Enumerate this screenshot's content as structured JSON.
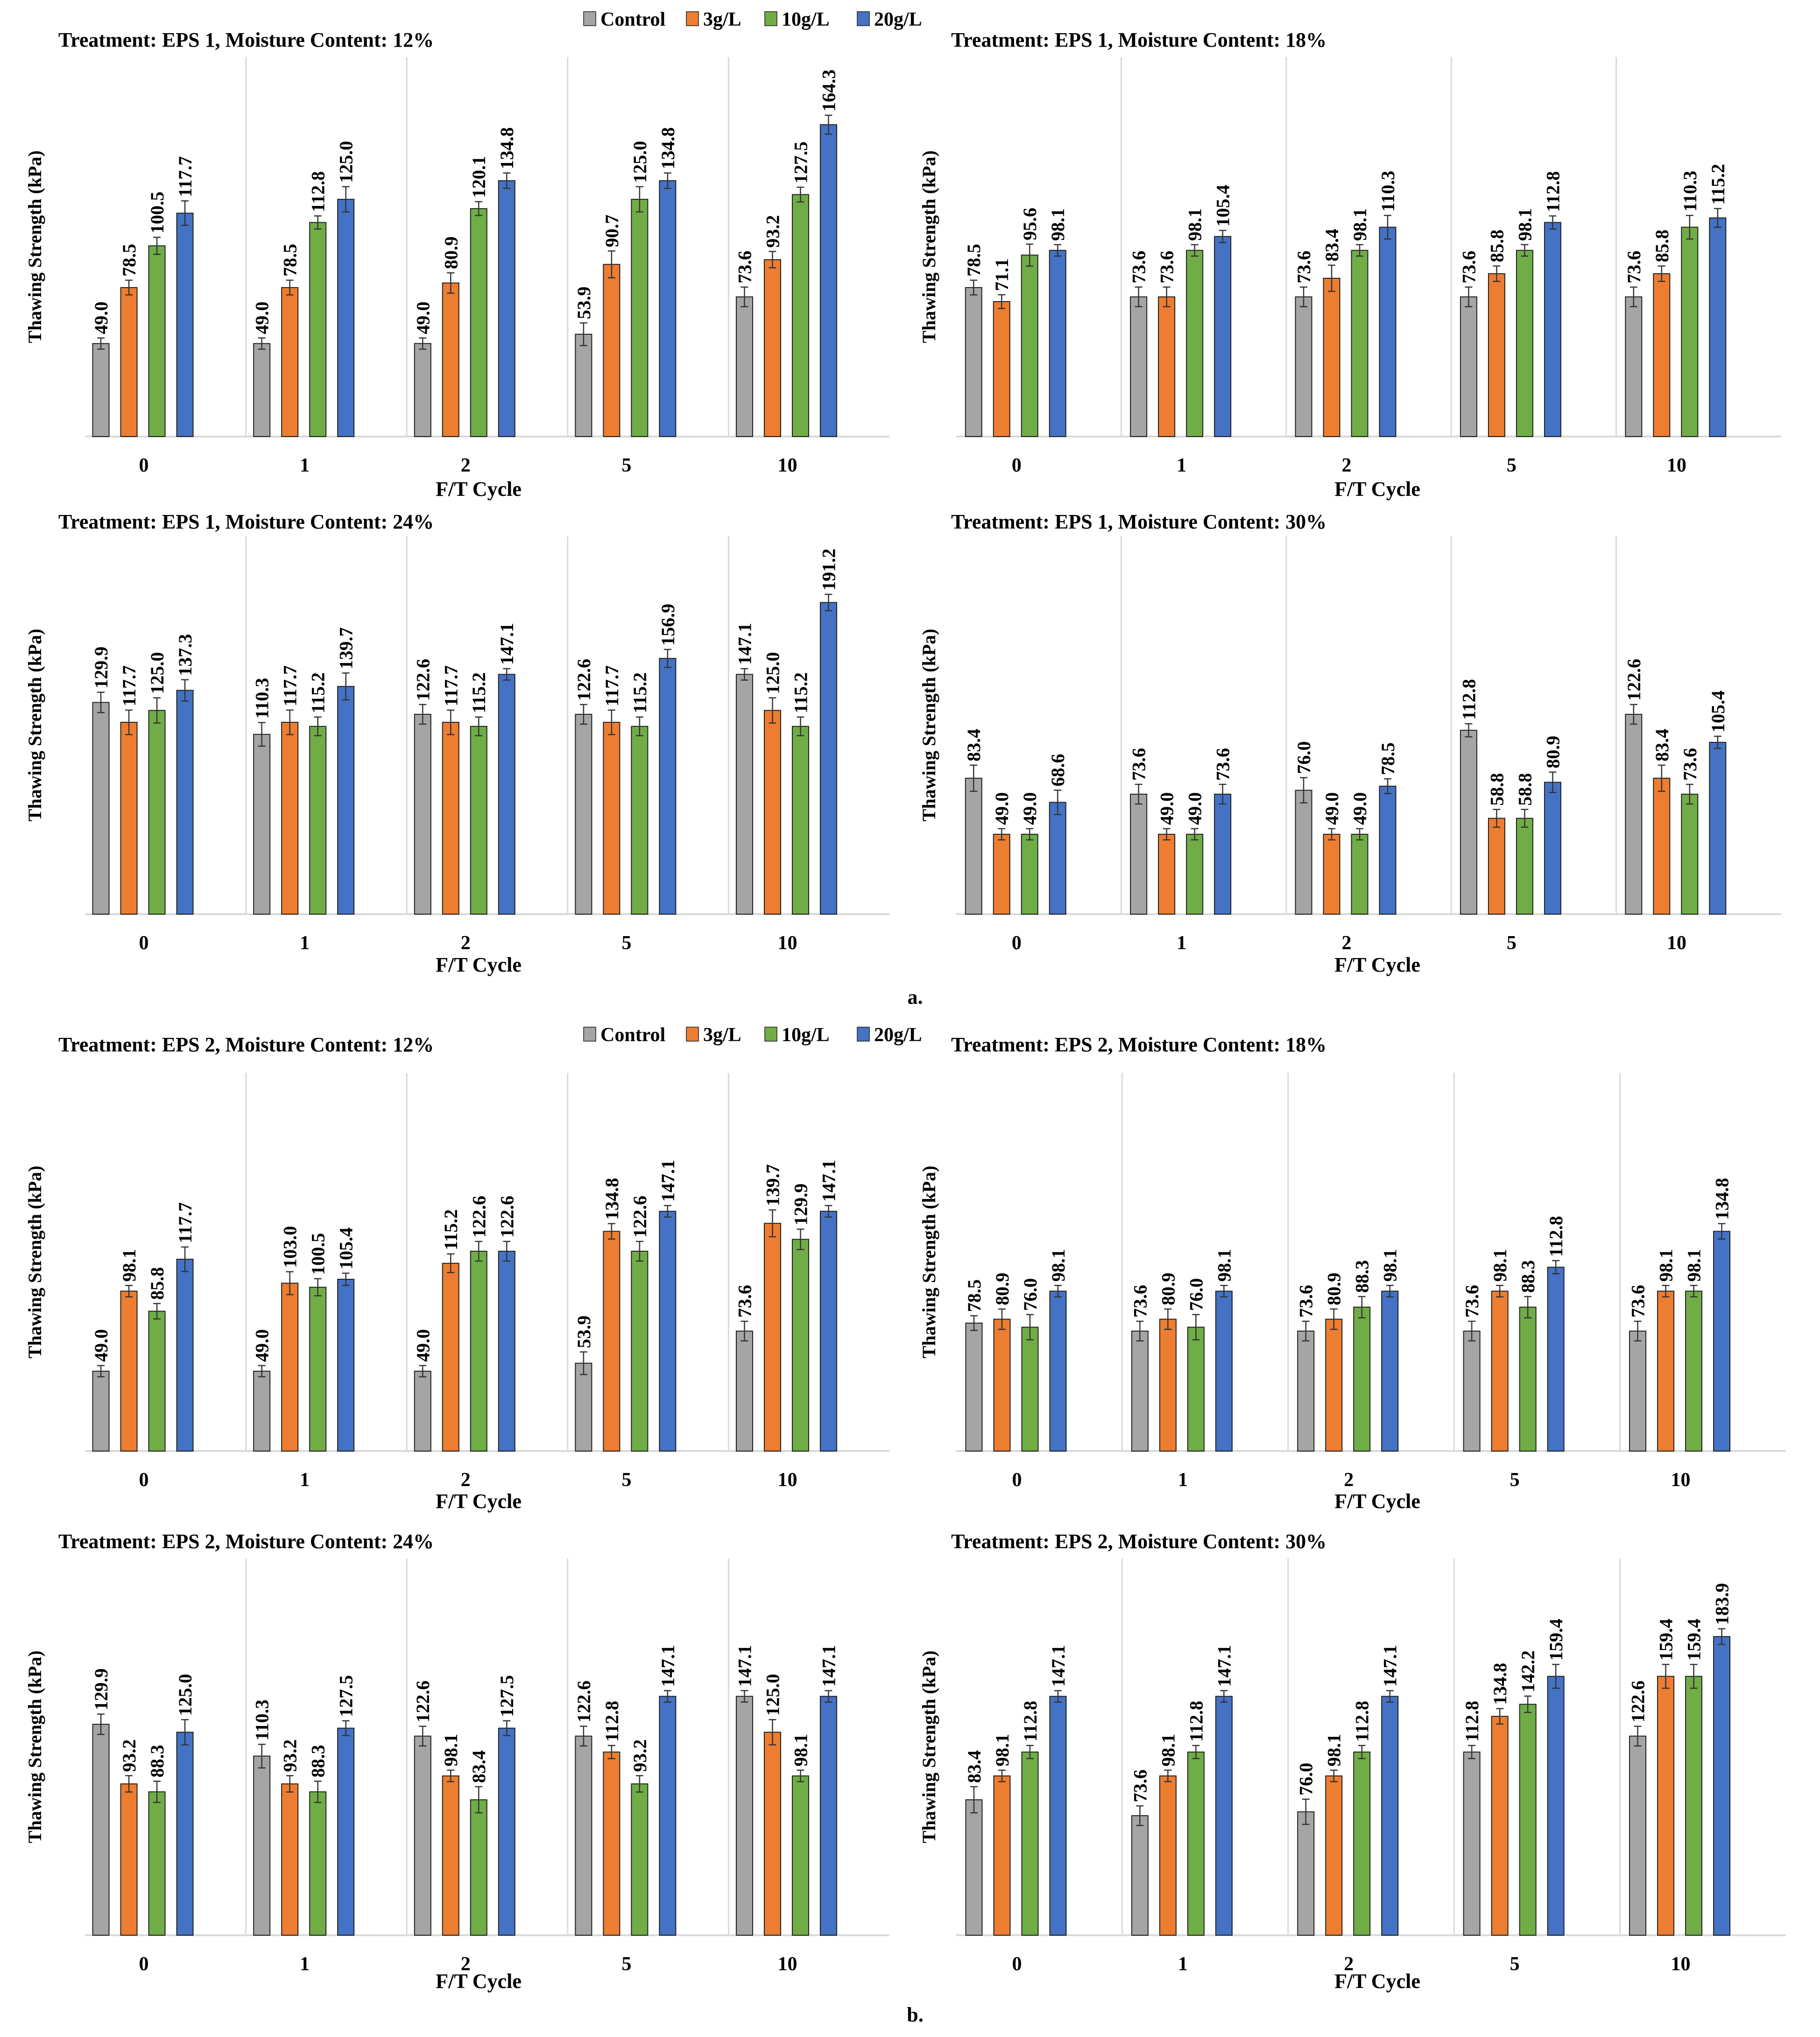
{
  "figure": {
    "section_labels": [
      "a.",
      "b."
    ],
    "legend": [
      {
        "name": "Control",
        "color": "#a5a5a5"
      },
      {
        "name": "3g/L",
        "color": "#ed7d31"
      },
      {
        "name": "10g/L",
        "color": "#70ad47"
      },
      {
        "name": "20g/L",
        "color": "#4472c4"
      }
    ]
  },
  "chart_data": [
    {
      "type": "bar",
      "title": "Treatment: EPS 1, Moisture Content: 12%",
      "xlabel": "F/T Cycle",
      "ylabel": "Thawing Strength (kPa)",
      "ylim": [
        0,
        200
      ],
      "grid": false,
      "categories": [
        "0",
        "1",
        "2",
        "5",
        "10"
      ],
      "series": [
        {
          "name": "Control",
          "values": [
            49.0,
            49.0,
            49.0,
            53.9,
            73.6
          ]
        },
        {
          "name": "3g/L",
          "values": [
            78.5,
            78.5,
            80.9,
            90.7,
            93.2
          ]
        },
        {
          "name": "10g/L",
          "values": [
            100.5,
            112.8,
            120.1,
            125.0,
            127.5
          ]
        },
        {
          "name": "20g/L",
          "values": [
            117.7,
            125.0,
            134.8,
            134.8,
            164.3
          ]
        }
      ]
    },
    {
      "type": "bar",
      "title": "Treatment: EPS 1, Moisture Content: 18%",
      "xlabel": "F/T Cycle",
      "ylabel": "Thawing Strength (kPa)",
      "ylim": [
        0,
        200
      ],
      "grid": false,
      "categories": [
        "0",
        "1",
        "2",
        "5",
        "10"
      ],
      "series": [
        {
          "name": "Control",
          "values": [
            78.5,
            73.6,
            73.6,
            73.6,
            73.6
          ]
        },
        {
          "name": "3g/L",
          "values": [
            71.1,
            73.6,
            83.4,
            85.8,
            85.8
          ]
        },
        {
          "name": "10g/L",
          "values": [
            95.6,
            98.1,
            98.1,
            98.1,
            110.3
          ]
        },
        {
          "name": "20g/L",
          "values": [
            98.1,
            105.4,
            110.3,
            112.8,
            115.2
          ]
        }
      ]
    },
    {
      "type": "bar",
      "title": "Treatment: EPS 1, Moisture Content: 24%",
      "xlabel": "F/T Cycle",
      "ylabel": "Thawing Strength (kPa)",
      "ylim": [
        0,
        232
      ],
      "grid": false,
      "categories": [
        "0",
        "1",
        "2",
        "5",
        "10"
      ],
      "series": [
        {
          "name": "Control",
          "values": [
            129.9,
            110.3,
            122.6,
            122.6,
            147.1
          ]
        },
        {
          "name": "3g/L",
          "values": [
            117.7,
            117.7,
            117.7,
            117.7,
            125.0
          ]
        },
        {
          "name": "10g/L",
          "values": [
            125.0,
            115.2,
            115.2,
            115.2,
            115.2
          ]
        },
        {
          "name": "20g/L",
          "values": [
            137.3,
            139.7,
            147.1,
            156.9,
            191.2
          ]
        }
      ]
    },
    {
      "type": "bar",
      "title": "Treatment: EPS 1, Moisture Content: 30%",
      "xlabel": "F/T Cycle",
      "ylabel": "Thawing Strength (kPa)",
      "ylim": [
        0,
        232
      ],
      "grid": false,
      "categories": [
        "0",
        "1",
        "2",
        "5",
        "10"
      ],
      "series": [
        {
          "name": "Control",
          "values": [
            83.4,
            73.6,
            76.0,
            112.8,
            122.6
          ]
        },
        {
          "name": "3g/L",
          "values": [
            49.0,
            49.0,
            49.0,
            58.8,
            83.4
          ]
        },
        {
          "name": "10g/L",
          "values": [
            49.0,
            49.0,
            49.0,
            58.8,
            73.6
          ]
        },
        {
          "name": "20g/L",
          "values": [
            68.6,
            73.6,
            78.5,
            80.9,
            105.4
          ]
        }
      ]
    },
    {
      "type": "bar",
      "title": "Treatment: EPS 2, Moisture Content: 12%",
      "xlabel": "F/T Cycle",
      "ylabel": "Thawing Strength (kPa)",
      "ylim": [
        0,
        232
      ],
      "grid": false,
      "categories": [
        "0",
        "1",
        "2",
        "5",
        "10"
      ],
      "series": [
        {
          "name": "Control",
          "values": [
            49.0,
            49.0,
            49.0,
            53.9,
            73.6
          ]
        },
        {
          "name": "3g/L",
          "values": [
            98.1,
            103.0,
            115.2,
            134.8,
            139.7
          ]
        },
        {
          "name": "10g/L",
          "values": [
            85.8,
            100.5,
            122.6,
            122.6,
            129.9
          ]
        },
        {
          "name": "20g/L",
          "values": [
            117.7,
            105.4,
            122.6,
            147.1,
            147.1
          ]
        }
      ]
    },
    {
      "type": "bar",
      "title": "Treatment: EPS 2, Moisture Content: 18%",
      "xlabel": "F/T Cycle",
      "ylabel": "Thawing Strength (kPa)",
      "ylim": [
        0,
        232
      ],
      "grid": false,
      "categories": [
        "0",
        "1",
        "2",
        "5",
        "10"
      ],
      "series": [
        {
          "name": "Control",
          "values": [
            78.5,
            73.6,
            73.6,
            73.6,
            73.6
          ]
        },
        {
          "name": "3g/L",
          "values": [
            80.9,
            80.9,
            80.9,
            98.1,
            98.1
          ]
        },
        {
          "name": "10g/L",
          "values": [
            76.0,
            76.0,
            88.3,
            88.3,
            98.1
          ]
        },
        {
          "name": "20g/L",
          "values": [
            98.1,
            98.1,
            98.1,
            112.8,
            134.8
          ]
        }
      ]
    },
    {
      "type": "bar",
      "title": "Treatment: EPS 2, Moisture Content: 24%",
      "xlabel": "F/T Cycle",
      "ylabel": "Thawing Strength (kPa)",
      "ylim": [
        0,
        232
      ],
      "grid": false,
      "categories": [
        "0",
        "1",
        "2",
        "5",
        "10"
      ],
      "series": [
        {
          "name": "Control",
          "values": [
            129.9,
            110.3,
            122.6,
            122.6,
            147.1
          ]
        },
        {
          "name": "3g/L",
          "values": [
            93.2,
            93.2,
            98.1,
            112.8,
            125.0
          ]
        },
        {
          "name": "10g/L",
          "values": [
            88.3,
            88.3,
            83.4,
            93.2,
            98.1
          ]
        },
        {
          "name": "20g/L",
          "values": [
            125.0,
            127.5,
            127.5,
            147.1,
            147.1
          ]
        }
      ]
    },
    {
      "type": "bar",
      "title": "Treatment: EPS 2, Moisture Content: 30%",
      "xlabel": "F/T Cycle",
      "ylabel": "Thawing Strength (kPa)",
      "ylim": [
        0,
        232
      ],
      "grid": false,
      "categories": [
        "0",
        "1",
        "2",
        "5",
        "10"
      ],
      "series": [
        {
          "name": "Control",
          "values": [
            83.4,
            73.6,
            76.0,
            112.8,
            122.6
          ]
        },
        {
          "name": "3g/L",
          "values": [
            98.1,
            98.1,
            98.1,
            134.8,
            159.4
          ]
        },
        {
          "name": "10g/L",
          "values": [
            112.8,
            112.8,
            112.8,
            142.2,
            159.4
          ]
        },
        {
          "name": "20g/L",
          "values": [
            147.1,
            147.1,
            147.1,
            159.4,
            183.9
          ]
        }
      ]
    }
  ]
}
